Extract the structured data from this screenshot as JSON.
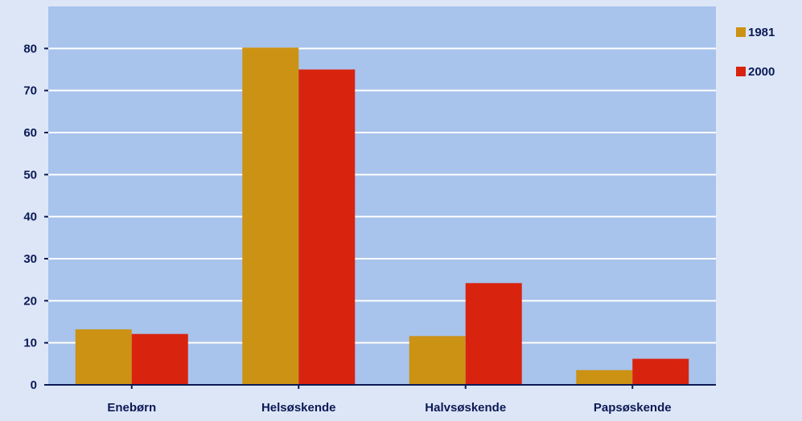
{
  "chart_data": {
    "type": "bar",
    "title": "",
    "xlabel": "",
    "ylabel": "",
    "categories": [
      "Enebørn",
      "Helsøskende",
      "Halvsøskende",
      "Papsøskende"
    ],
    "series": [
      {
        "name": "1981",
        "values": [
          13.2,
          80.2,
          11.6,
          3.5
        ],
        "color": "#cc9214"
      },
      {
        "name": "2000",
        "values": [
          12.1,
          75.0,
          24.2,
          6.2
        ],
        "color": "#d8230f"
      }
    ],
    "ylim": [
      0,
      90
    ],
    "yticks": [
      0,
      10,
      20,
      30,
      40,
      50,
      60,
      70,
      80
    ],
    "grid": true,
    "legend_position": "top-right",
    "colors": {
      "page_background": "#dde6f7",
      "plot_background": "#a8c3ec",
      "gridline": "#ffffff",
      "axis": "#0b1a55",
      "text": "#0b1a55"
    }
  }
}
